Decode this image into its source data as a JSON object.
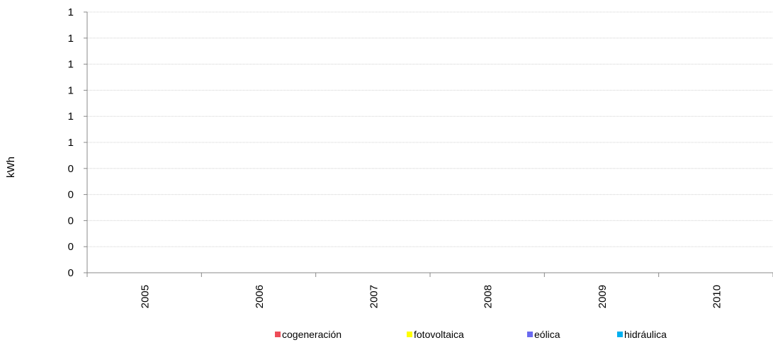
{
  "chart_data": {
    "type": "bar",
    "title": "",
    "xlabel": "",
    "ylabel": "kWh",
    "categories": [
      "2005",
      "2006",
      "2007",
      "2008",
      "2009",
      "2010"
    ],
    "y_tick_labels": [
      "0",
      "0",
      "0",
      "0",
      "0",
      "1",
      "1",
      "1",
      "1",
      "1",
      "1"
    ],
    "ylim": [
      0,
      1
    ],
    "grid": true,
    "legend_position": "bottom",
    "series": [
      {
        "name": "cogeneración",
        "color": "#ee4c58",
        "values": [
          0,
          0,
          0,
          0,
          0,
          0
        ]
      },
      {
        "name": "fotovoltaica",
        "color": "#ffff00",
        "values": [
          0,
          0,
          0,
          0,
          0,
          0
        ]
      },
      {
        "name": "eólica",
        "color": "#6a6af0",
        "values": [
          0,
          0,
          0,
          0,
          0,
          0
        ]
      },
      {
        "name": "hidráulica",
        "color": "#00b0f0",
        "values": [
          0,
          0,
          0,
          0,
          0,
          0
        ]
      }
    ]
  }
}
